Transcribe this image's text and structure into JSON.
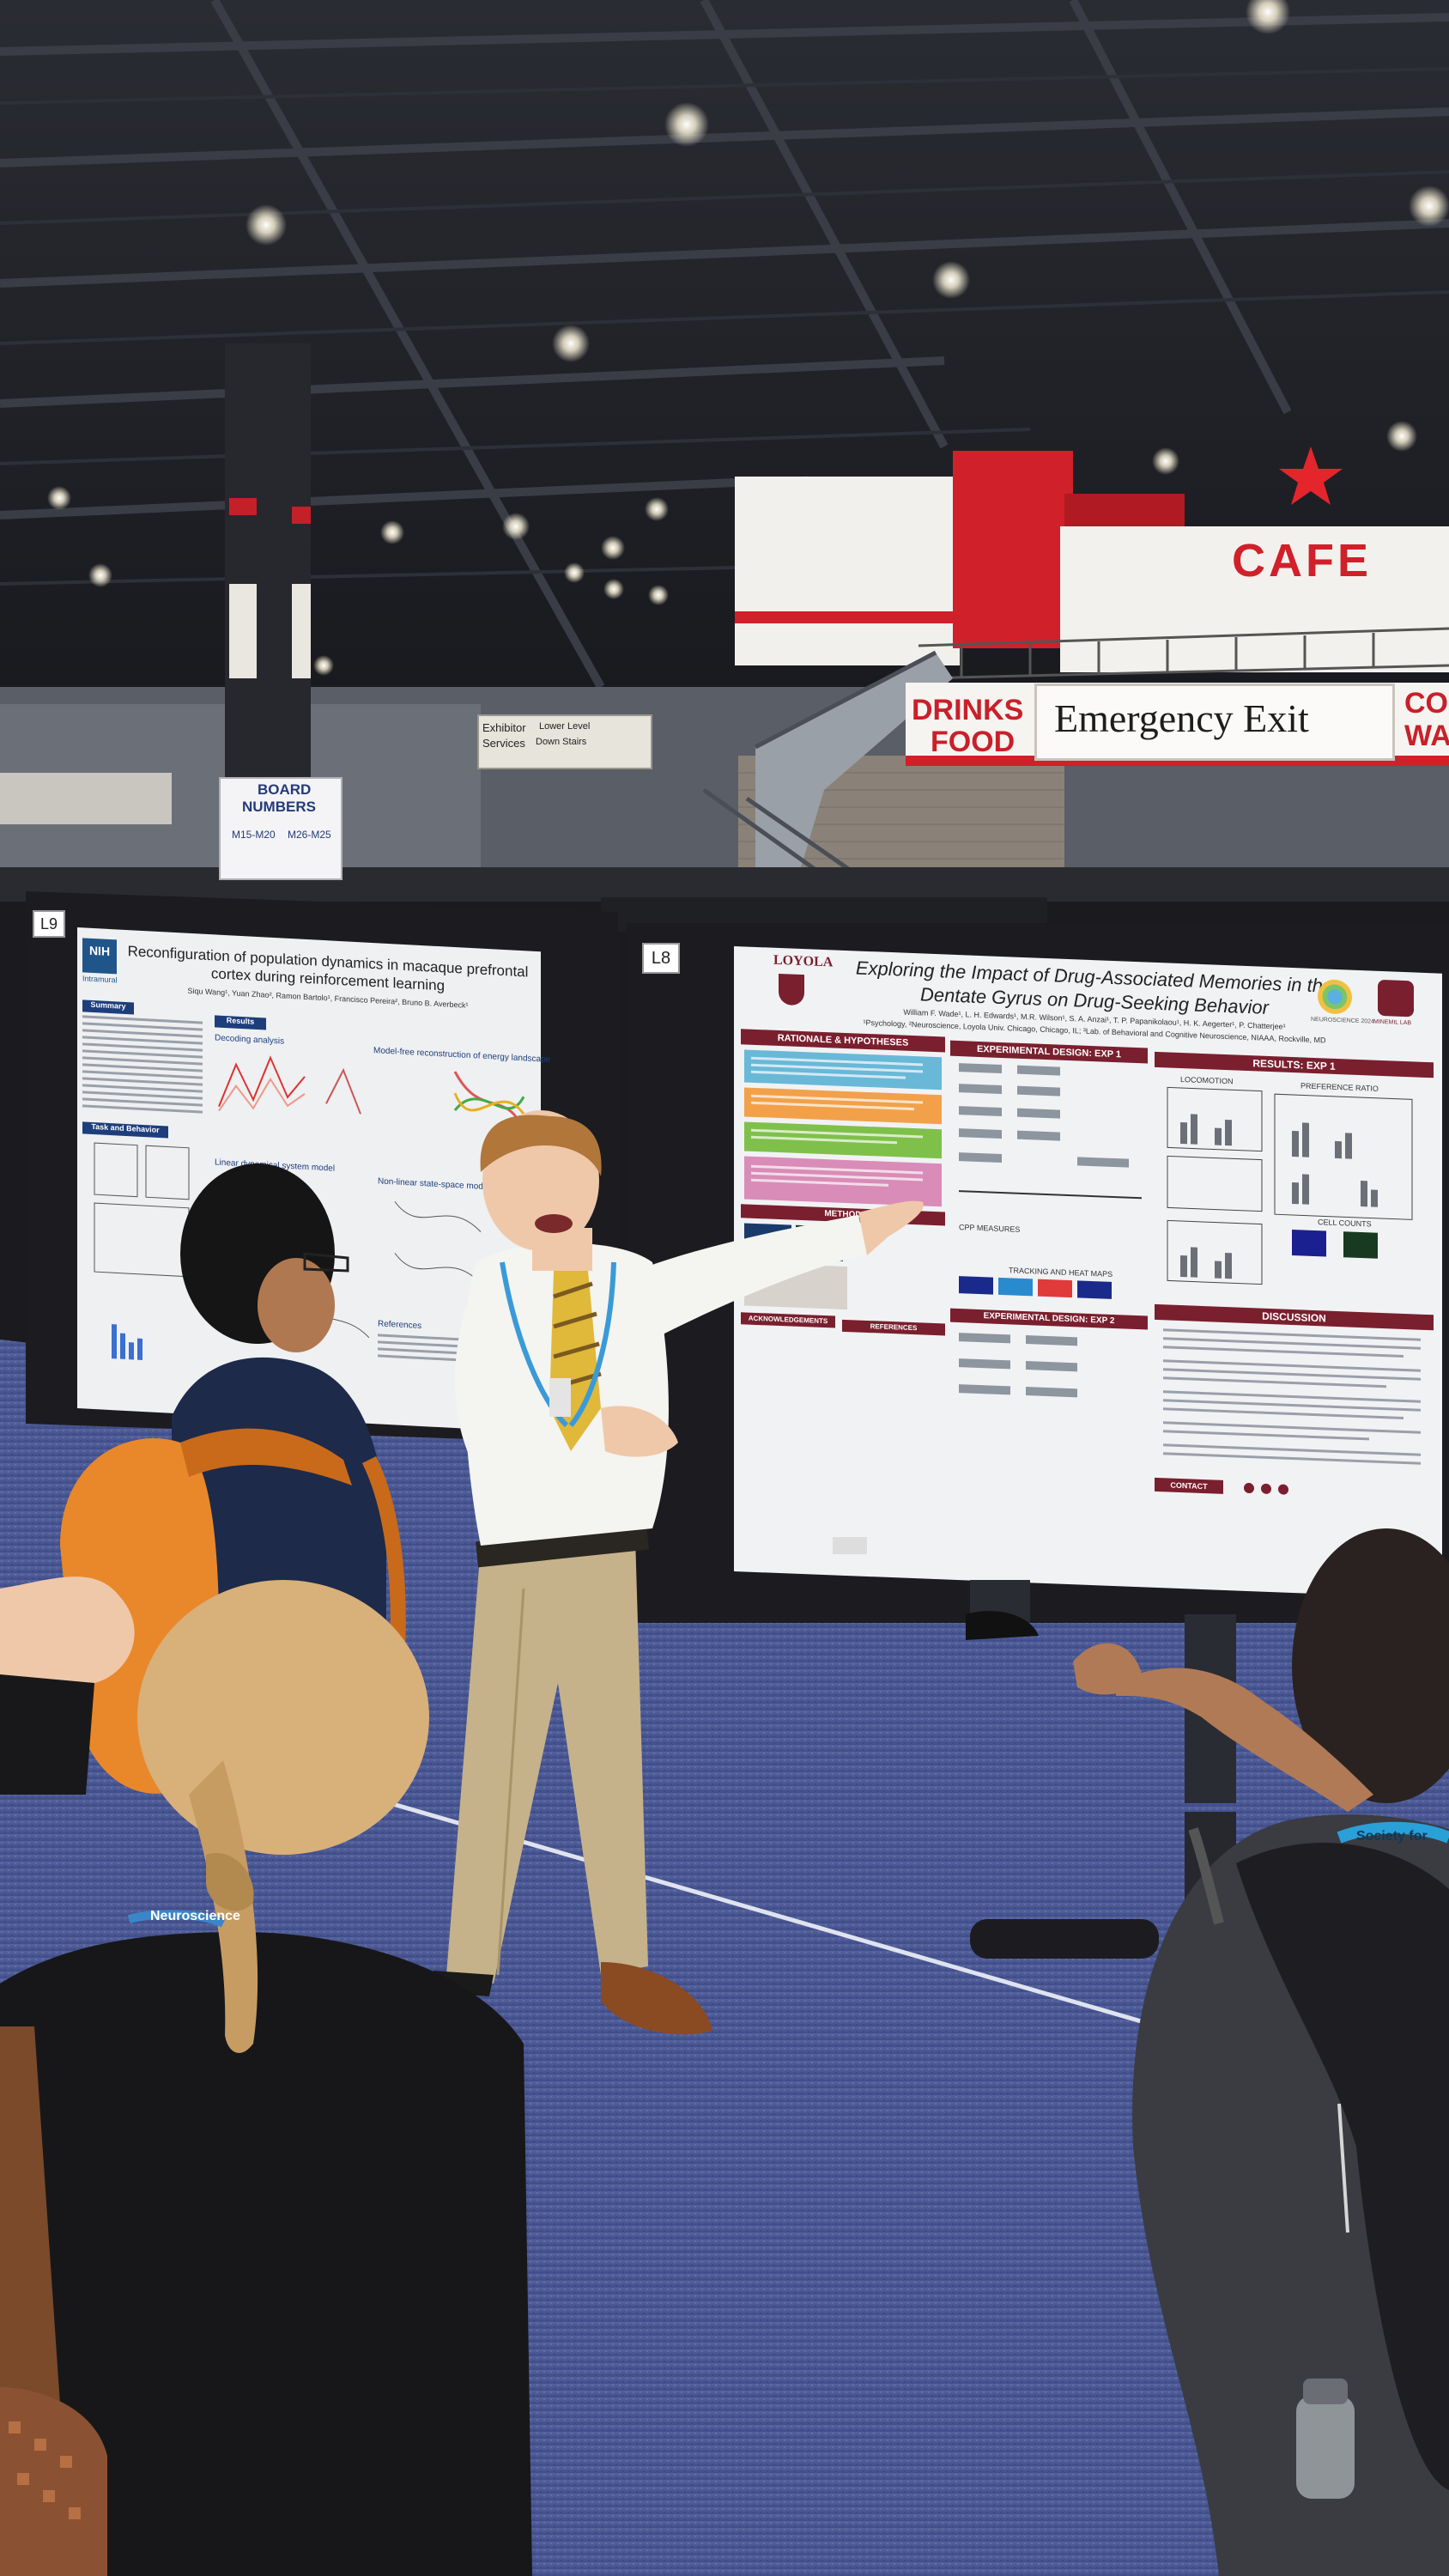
{
  "scene": {
    "description_label": "Poster session at a neuroscience conference exhibit hall",
    "colors": {
      "ceiling": "#1e2026",
      "carpet": "#4a5a9a",
      "cafe_red": "#d0202a",
      "poster_maroon": "#7a1f2e",
      "poster_bg": "#eef0f2"
    }
  },
  "signs": {
    "cafe": "CAFE",
    "drinks": "DRINKS",
    "food": "FOOD",
    "emergency_exit": "Emergency Exit",
    "cut_off_right_top": "CO",
    "cut_off_right_bottom": "WA",
    "board_numbers_title_1": "BOARD",
    "board_numbers_title_2": "NUMBERS",
    "board_range_1": "M15-M20",
    "board_range_2": "M26-M25",
    "directional_1": "Exhibitor",
    "directional_2": "Services",
    "directional_3": "Lower Level",
    "directional_4": "Down Stairs",
    "board_left_label": "L9",
    "board_right_label": "L8"
  },
  "poster_left": {
    "logo": "NIH",
    "logo_sub": "Intramural",
    "title": "Reconfiguration of population dynamics in macaque prefrontal cortex during reinforcement learning",
    "authors": "Siqu Wang¹, Yuan Zhao², Ramon Bartolo¹, Francisco Pereira², Bruno B. Averbeck¹",
    "sections": [
      "Summary",
      "Results",
      "Task and Behavior"
    ],
    "subheads": [
      "Decoding analysis",
      "Model-free reconstruction of energy landscape",
      "Linear dynamical system model",
      "Non-linear state-space model",
      "References"
    ]
  },
  "poster_right": {
    "logo": "LOYOLA",
    "title_line1": "Exploring the Impact of Drug-Associated Memories in the",
    "title_line2": "Dentate Gyrus on Drug-Seeking Behavior",
    "authors": "William F. Wade¹, L. H. Edwards¹, M.R. Wilson¹, S. A. Anzai¹, T. P. Papanikolaou¹, H. K. Aegerter¹, P. Chatterjee¹",
    "affiliations": "¹Psychology, ²Neuroscience, Loyola Univ. Chicago, Chicago, IL; ³Lab. of Behavioral and Cognitive Neuroscience, NIAAA, Rockville, MD",
    "badge_1": "NEUROSCIENCE 2024",
    "badge_2": "MINEMIL LAB",
    "sections": {
      "rationale": "RATIONALE & HYPOTHESES",
      "exp_design_1": "EXPERIMENTAL DESIGN: EXP 1",
      "results_1": "RESULTS: EXP 1",
      "locomotion": "LOCOMOTION",
      "preference_ratio": "PREFERENCE RATIO",
      "cell_counts": "CELL COUNTS",
      "method": "METHOD",
      "cpp_measures": "CPP MEASURES",
      "tracking": "TRACKING AND HEAT MAPS",
      "exp_design_2": "EXPERIMENTAL DESIGN: EXP 2",
      "acknowledgements": "ACKNOWLEDGEMENTS",
      "references": "REFERENCES",
      "discussion": "DISCUSSION",
      "contact": "CONTACT"
    }
  },
  "badges": {
    "lanyard_text": "Neuroscience",
    "lanyard_text_2": "Society for"
  }
}
